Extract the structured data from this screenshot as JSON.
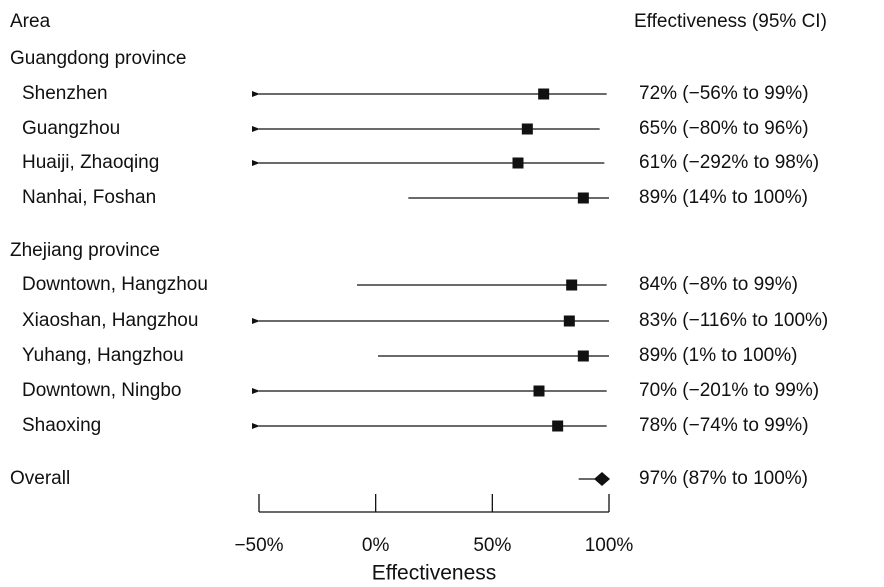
{
  "chart_data": {
    "type": "forest",
    "left_header": "Area",
    "right_header": "Effectiveness (95% CI)",
    "xlabel": "Effectiveness",
    "xlim": [
      -50,
      100
    ],
    "xticks": [
      {
        "value": -50,
        "label": "−50%"
      },
      {
        "value": 0,
        "label": "0%"
      },
      {
        "value": 50,
        "label": "50%"
      },
      {
        "value": 100,
        "label": "100%"
      }
    ],
    "groups": [
      {
        "name": "Guangdong province",
        "rows": [
          {
            "label": "Shenzhen",
            "estimate": 72,
            "lower": -56,
            "upper": 99,
            "text": "72%  (−56% to 99%)"
          },
          {
            "label": "Guangzhou",
            "estimate": 65,
            "lower": -80,
            "upper": 96,
            "text": "65%  (−80% to 96%)"
          },
          {
            "label": "Huaiji, Zhaoqing",
            "estimate": 61,
            "lower": -292,
            "upper": 98,
            "text": "61%  (−292% to 98%)"
          },
          {
            "label": "Nanhai, Foshan",
            "estimate": 89,
            "lower": 14,
            "upper": 100,
            "text": "89%  (14% to 100%)"
          }
        ]
      },
      {
        "name": "Zhejiang province",
        "rows": [
          {
            "label": "Downtown, Hangzhou",
            "estimate": 84,
            "lower": -8,
            "upper": 99,
            "text": "84%  (−8% to 99%)"
          },
          {
            "label": "Xiaoshan, Hangzhou",
            "estimate": 83,
            "lower": -116,
            "upper": 100,
            "text": "83%  (−116% to 100%)"
          },
          {
            "label": "Yuhang, Hangzhou",
            "estimate": 89,
            "lower": 1,
            "upper": 100,
            "text": "89%  (1% to 100%)"
          },
          {
            "label": "Downtown, Ningbo",
            "estimate": 70,
            "lower": -201,
            "upper": 99,
            "text": "70%  (−201% to 99%)"
          },
          {
            "label": "Shaoxing",
            "estimate": 78,
            "lower": -74,
            "upper": 99,
            "text": "78%  (−74% to 99%)"
          }
        ]
      }
    ],
    "overall": {
      "label": "Overall",
      "estimate": 97,
      "lower": 87,
      "upper": 100,
      "text": "97%  (87% to 100%)"
    },
    "colors": {
      "ink": "#111111"
    }
  }
}
